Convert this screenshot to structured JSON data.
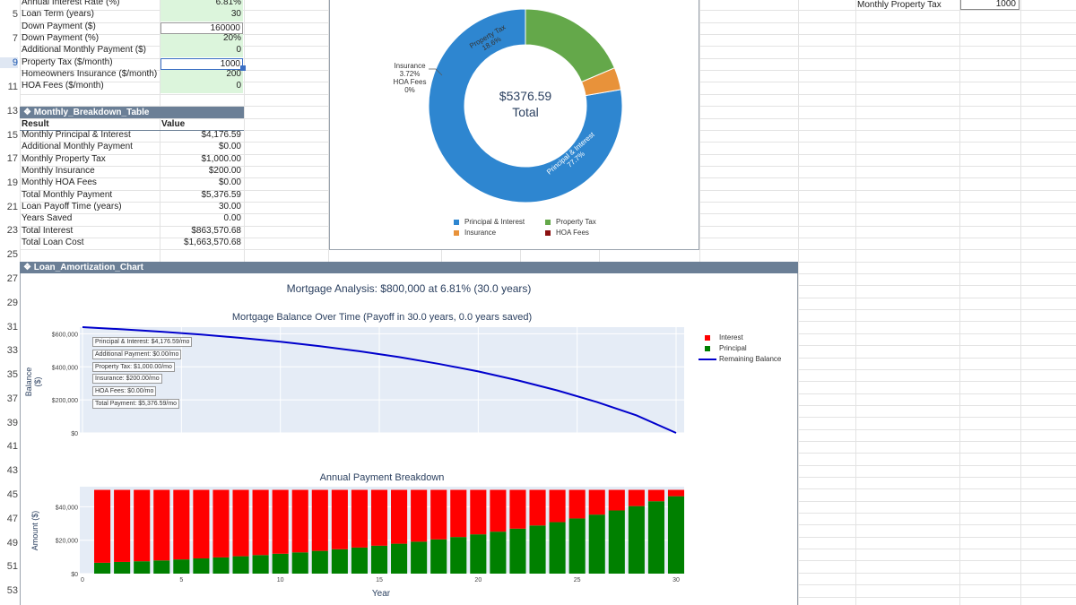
{
  "sheet": {
    "row_numbers": [
      {
        "n": "5",
        "y": 17
      },
      {
        "n": "7",
        "y": 44
      },
      {
        "n": "9",
        "y": 71
      },
      {
        "n": "11",
        "y": 98
      },
      {
        "n": "13",
        "y": 125
      },
      {
        "n": "15",
        "y": 152
      },
      {
        "n": "17",
        "y": 178
      },
      {
        "n": "19",
        "y": 205
      },
      {
        "n": "21",
        "y": 232
      },
      {
        "n": "23",
        "y": 258
      },
      {
        "n": "25",
        "y": 285
      },
      {
        "n": "27",
        "y": 312
      },
      {
        "n": "29",
        "y": 339
      },
      {
        "n": "31",
        "y": 366
      },
      {
        "n": "33",
        "y": 392
      },
      {
        "n": "35",
        "y": 419
      },
      {
        "n": "37",
        "y": 446
      },
      {
        "n": "39",
        "y": 473
      },
      {
        "n": "41",
        "y": 499
      },
      {
        "n": "43",
        "y": 526
      },
      {
        "n": "45",
        "y": 553
      },
      {
        "n": "47",
        "y": 580
      },
      {
        "n": "49",
        "y": 607
      },
      {
        "n": "51",
        "y": 633
      },
      {
        "n": "53",
        "y": 660
      }
    ],
    "inputs": [
      {
        "label": "Annual Interest Rate (%)",
        "value": "6.81%"
      },
      {
        "label": "Loan Term (years)",
        "value": "30"
      },
      {
        "label": "Down Payment ($)",
        "value": "160000"
      },
      {
        "label": "Down Payment (%)",
        "value": "20%"
      },
      {
        "label": "Additional Monthly Payment ($)",
        "value": "0"
      },
      {
        "label": "Property Tax ($/month)",
        "value": "1000"
      },
      {
        "label": "Homeowners Insurance ($/month)",
        "value": "200"
      },
      {
        "label": "HOA Fees ($/month)",
        "value": "0"
      }
    ],
    "right_label": "Monthly Property Tax",
    "right_value": "1000"
  },
  "breakdown": {
    "banner": "❖ Monthly_Breakdown_Table",
    "col_result": "Result",
    "col_value": "Value",
    "rows": [
      {
        "label": "Monthly Principal & Interest",
        "value": "$4,176.59"
      },
      {
        "label": "Additional Monthly Payment",
        "value": "$0.00"
      },
      {
        "label": "Monthly Property Tax",
        "value": "$1,000.00"
      },
      {
        "label": "Monthly Insurance",
        "value": "$200.00"
      },
      {
        "label": "Monthly HOA Fees",
        "value": "$0.00"
      },
      {
        "label": "Total Monthly Payment",
        "value": "$5,376.59"
      },
      {
        "label": "Loan Payoff Time (years)",
        "value": "30.00"
      },
      {
        "label": "Years Saved",
        "value": "0.00"
      },
      {
        "label": "Total Interest",
        "value": "$863,570.68"
      },
      {
        "label": "Total Loan Cost",
        "value": "$1,663,570.68"
      }
    ]
  },
  "donut": {
    "center_value": "$5376.59",
    "center_label": "Total",
    "slice_labels": {
      "pi": "Principal & Interest",
      "pi_pct": "77.7%",
      "tax": "Property Tax",
      "tax_pct": "18.6%",
      "ins": "Insurance",
      "ins_pct": "3.72%",
      "hoa": "HOA Fees",
      "hoa_pct": "0%"
    },
    "legend": [
      "Principal & Interest",
      "Property Tax",
      "Insurance",
      "HOA Fees"
    ],
    "colors": {
      "pi": "#2e86d0",
      "tax": "#64a84a",
      "ins": "#e8923a",
      "hoa": "#8b1010"
    }
  },
  "amort": {
    "banner": "❖ Loan_Amortization_Chart",
    "main_title": "Mortgage Analysis: $800,000 at 6.81% (30.0 years)",
    "balance_title": "Mortgage Balance Over Time (Payoff in 30.0 years, 0.0 years saved)",
    "balance_ylabel": "Balance ($)",
    "balance_ticks": [
      "$600,000",
      "$400,000",
      "$200,000",
      "$0"
    ],
    "annotations": [
      "Principal & Interest: $4,176.59/mo",
      "Additional Payment: $0.00/mo",
      "Property Tax: $1,000.00/mo",
      "Insurance: $200.00/mo",
      "HOA Fees: $0.00/mo",
      "Total Payment: $5,376.59/mo"
    ],
    "legend": {
      "interest": "Interest",
      "principal": "Principal",
      "balance": "Remaining Balance"
    },
    "bar_title": "Annual Payment Breakdown",
    "bar_ylabel": "Amount ($)",
    "bar_ticks": [
      "$40,000",
      "$20,000",
      "$0"
    ],
    "x_ticks": [
      "0",
      "5",
      "10",
      "15",
      "20",
      "25",
      "30"
    ],
    "xlabel": "Year",
    "colors": {
      "interest": "#ff0000",
      "principal": "#008000",
      "balance": "#0000cc"
    }
  },
  "chart_data": [
    {
      "type": "pie",
      "title": "",
      "labels": [
        "Principal & Interest",
        "Property Tax",
        "Insurance",
        "HOA Fees"
      ],
      "values": [
        4176.59,
        1000.0,
        200.0,
        0.0
      ]
    },
    {
      "type": "line",
      "title": "Mortgage Balance Over Time (Payoff in 30.0 years, 0.0 years saved)",
      "xlabel": "",
      "ylabel": "Balance ($)",
      "ylim": [
        0,
        640000
      ],
      "xlim": [
        0,
        30
      ],
      "series": [
        {
          "name": "Remaining Balance",
          "x": [
            0,
            2,
            4,
            6,
            8,
            10,
            12,
            14,
            16,
            18,
            20,
            22,
            24,
            26,
            28,
            30
          ],
          "y": [
            640000,
            627000,
            612000,
            595000,
            575000,
            552000,
            525000,
            494000,
            459000,
            418000,
            372000,
            318000,
            257000,
            187000,
            106000,
            0
          ]
        }
      ]
    },
    {
      "type": "bar",
      "title": "Annual Payment Breakdown",
      "xlabel": "Year",
      "ylabel": "Amount ($)",
      "ylim": [
        0,
        52000
      ],
      "categories": [
        1,
        2,
        3,
        4,
        5,
        6,
        7,
        8,
        9,
        10,
        11,
        12,
        13,
        14,
        15,
        16,
        17,
        18,
        19,
        20,
        21,
        22,
        23,
        24,
        25,
        26,
        27,
        28,
        29,
        30
      ],
      "series": [
        {
          "name": "Principal",
          "values": [
            6500,
            7000,
            7400,
            7900,
            8500,
            9100,
            9700,
            10400,
            11100,
            11900,
            12700,
            13600,
            14600,
            15600,
            16700,
            17900,
            19100,
            20500,
            21900,
            23500,
            25100,
            26900,
            28800,
            30800,
            33000,
            35300,
            37800,
            40400,
            43300,
            46300
          ]
        },
        {
          "name": "Interest",
          "values": [
            43600,
            43100,
            42700,
            42200,
            41600,
            41000,
            40400,
            39700,
            39000,
            38200,
            37400,
            36500,
            35500,
            34500,
            33400,
            32200,
            31000,
            29600,
            28200,
            26600,
            25000,
            23200,
            21300,
            19300,
            17100,
            14800,
            12300,
            9700,
            6800,
            3800
          ]
        }
      ]
    }
  ]
}
